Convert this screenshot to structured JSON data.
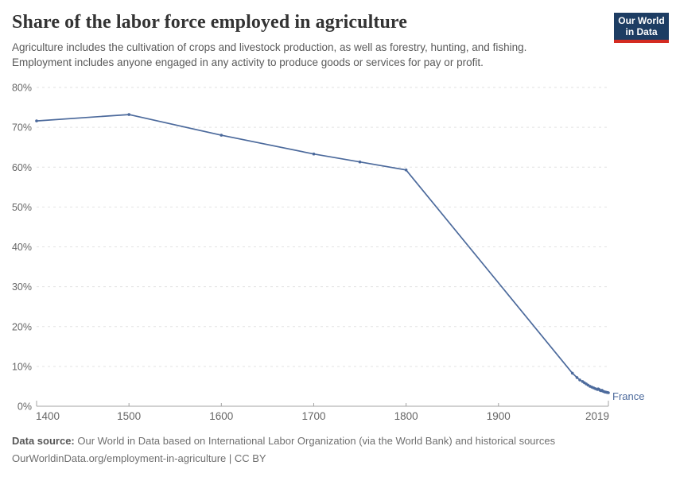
{
  "header": {
    "title": "Share of the labor force employed in agriculture",
    "subtitle": [
      "Agriculture includes the cultivation of crops and livestock production, as well as forestry, hunting, and fishing.",
      "Employment includes anyone engaged in any activity to produce goods or services for pay or profit."
    ],
    "logo": {
      "line1": "Our World",
      "line2": "in Data"
    }
  },
  "chart_data": {
    "type": "line",
    "title": "Share of the labor force employed in agriculture",
    "xlabel": "",
    "ylabel": "",
    "xlim": [
      1400,
      2019
    ],
    "ylim": [
      0,
      80
    ],
    "grid": "horizontal-dashed",
    "legend": "end-of-line-label",
    "x_ticks": [
      1400,
      1500,
      1600,
      1700,
      1800,
      1900,
      2019
    ],
    "y_ticks": [
      0,
      10,
      20,
      30,
      40,
      50,
      60,
      70,
      80
    ],
    "y_tick_suffix": "%",
    "series": [
      {
        "name": "France",
        "color": "#4c6a9c",
        "points": [
          [
            1400,
            71.6
          ],
          [
            1500,
            73.2
          ],
          [
            1600,
            68.0
          ],
          [
            1700,
            63.3
          ],
          [
            1750,
            61.3
          ],
          [
            1800,
            59.3
          ],
          [
            1980,
            8.3
          ],
          [
            1985,
            7.2
          ],
          [
            1988,
            6.6
          ],
          [
            1991,
            6.2
          ],
          [
            1993,
            5.9
          ],
          [
            1995,
            5.6
          ],
          [
            1997,
            5.3
          ],
          [
            1999,
            5.0
          ],
          [
            2001,
            4.8
          ],
          [
            2003,
            4.6
          ],
          [
            2005,
            4.4
          ],
          [
            2007,
            4.2
          ],
          [
            2008,
            4.35
          ],
          [
            2009,
            4.2
          ],
          [
            2010,
            4.0
          ],
          [
            2011,
            3.9
          ],
          [
            2012,
            4.0
          ],
          [
            2013,
            3.8
          ],
          [
            2014,
            3.7
          ],
          [
            2015,
            3.6
          ],
          [
            2016,
            3.55
          ],
          [
            2017,
            3.5
          ],
          [
            2018,
            3.45
          ],
          [
            2019,
            3.4
          ]
        ]
      }
    ]
  },
  "footer": {
    "source_label": "Data source:",
    "source_text": " Our World in Data based on International Labor Organization (via the World Bank) and historical sources",
    "link_line": "OurWorldinData.org/employment-in-agriculture | CC BY"
  },
  "colors": {
    "line_blue": "#4c6a9c",
    "grid": "#e2e2e2",
    "axis": "#a3a3a3",
    "tick_label": "#666666",
    "logo_navy": "#1d3d63",
    "logo_red": "#d42b21"
  }
}
